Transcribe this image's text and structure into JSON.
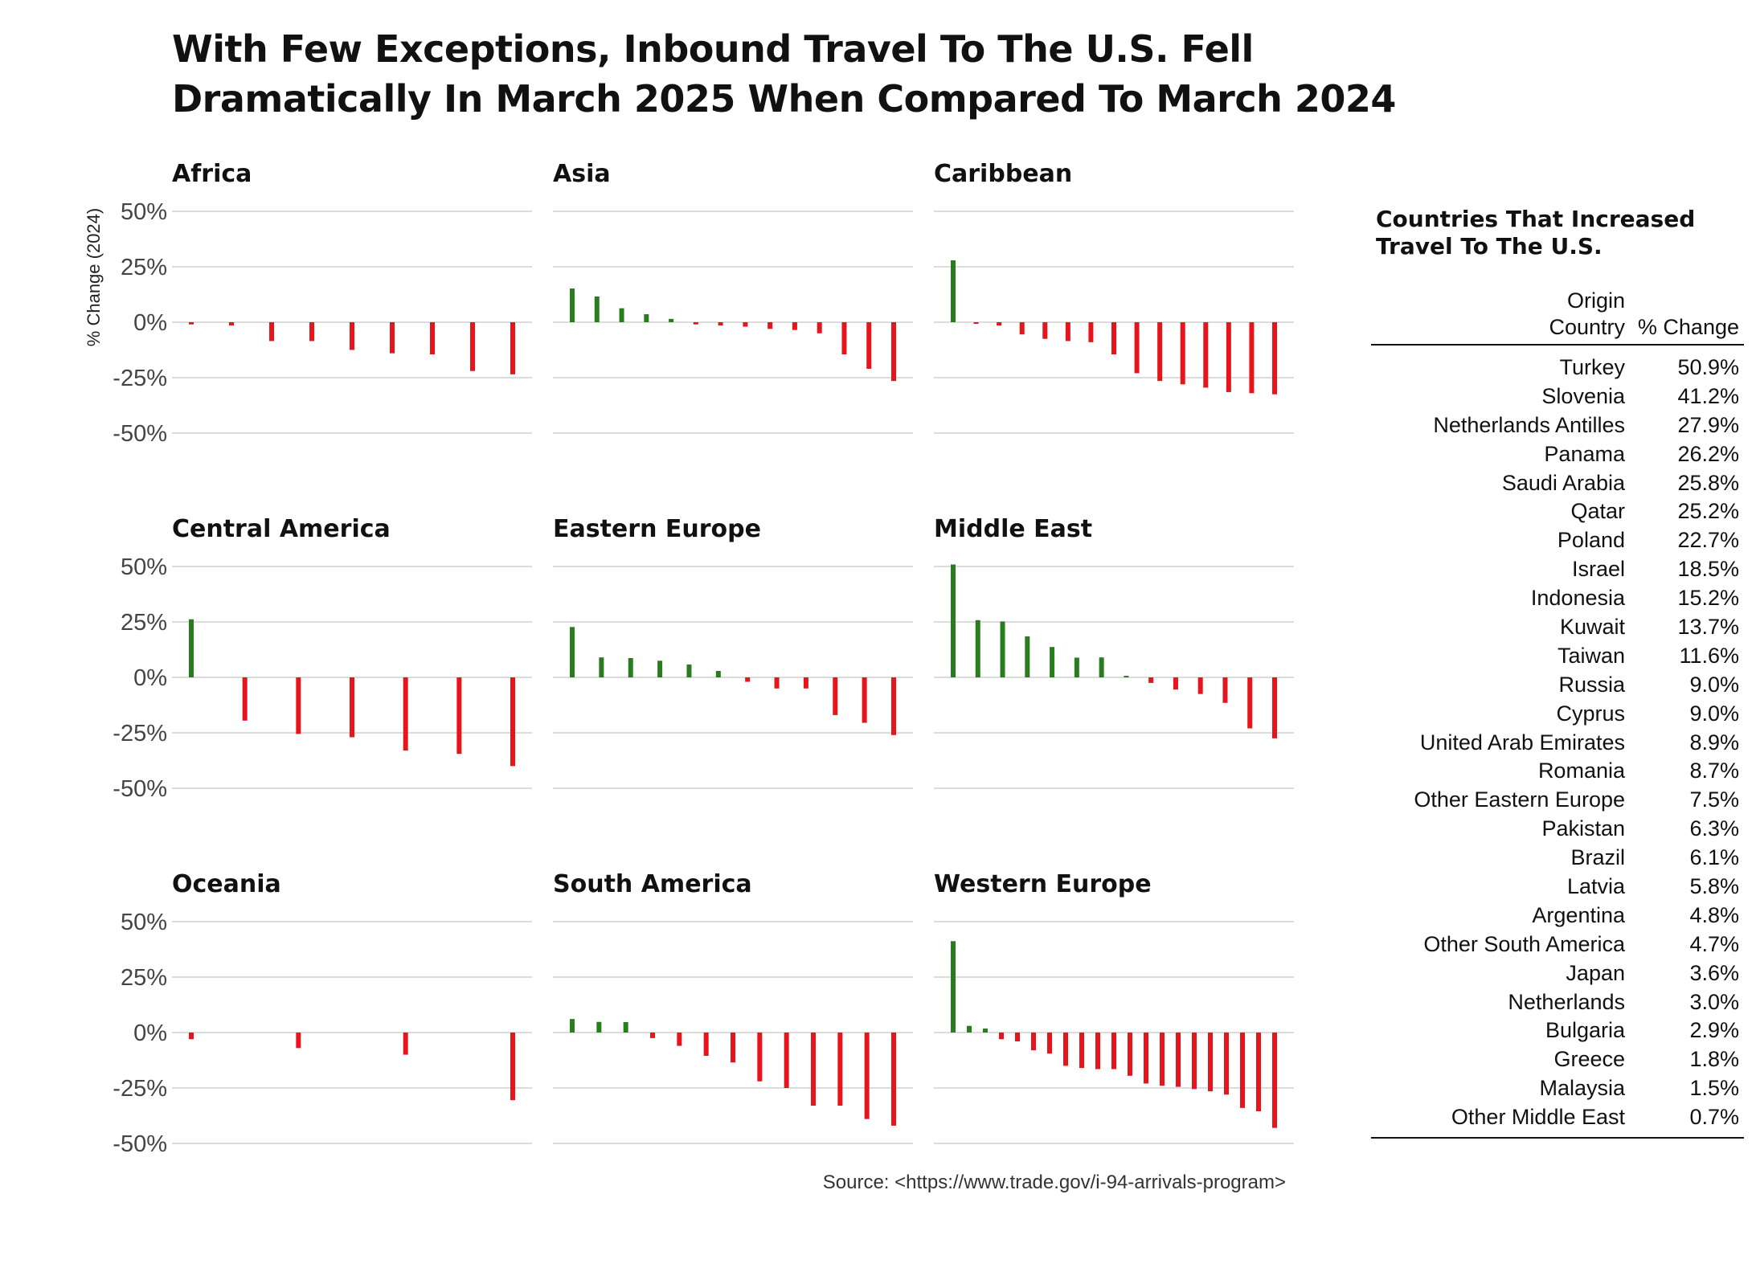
{
  "title_lines": [
    "With Few Exceptions, Inbound Travel To The U.S. Fell",
    "Dramatically In March 2025 When Compared To March 2024"
  ],
  "source": "Source: <https://www.trade.gov/i-94-arrivals-program>",
  "colors": {
    "increase": "#2a7d1f",
    "decrease": "#e8141c",
    "grid": "#d0d0d0",
    "text": "#111111"
  },
  "chart_data": {
    "type": "bar",
    "ylabel": "% Change (2024)",
    "ylim": [
      -50,
      50
    ],
    "y_ticks": [
      50,
      25,
      0,
      -25,
      -50
    ],
    "y_tick_labels": [
      "50%",
      "25%",
      "0%",
      "-25%",
      "-50%"
    ],
    "grid": true,
    "panels": [
      {
        "name": "Africa",
        "values": [
          -1.0,
          -1.5,
          -8.5,
          -8.5,
          -12.5,
          -14.0,
          -14.5,
          -22.0,
          -23.5
        ]
      },
      {
        "name": "Asia",
        "values": [
          15.2,
          11.6,
          6.3,
          3.6,
          1.5,
          -1.0,
          -1.5,
          -2.0,
          -3.0,
          -3.5,
          -5.0,
          -14.5,
          -21.0,
          -26.5
        ]
      },
      {
        "name": "Caribbean",
        "values": [
          27.9,
          -0.5,
          -1.5,
          -5.5,
          -7.5,
          -8.5,
          -9.0,
          -14.5,
          -23.0,
          -26.5,
          -28.0,
          -29.5,
          -31.5,
          -32.0,
          -32.5
        ]
      },
      {
        "name": "Central America",
        "values": [
          26.2,
          -19.5,
          -25.5,
          -27.0,
          -33.0,
          -34.5,
          -40.0
        ]
      },
      {
        "name": "Eastern Europe",
        "values": [
          22.7,
          9.0,
          8.7,
          7.5,
          5.8,
          2.9,
          -2.0,
          -5.0,
          -5.0,
          -17.0,
          -20.5,
          -26.0
        ]
      },
      {
        "name": "Middle East",
        "values": [
          50.9,
          25.8,
          25.2,
          18.5,
          13.7,
          8.9,
          9.0,
          0.7,
          -2.5,
          -5.5,
          -7.5,
          -11.5,
          -23.0,
          -27.5
        ]
      },
      {
        "name": "Oceania",
        "values": [
          -3.0,
          -7.0,
          -10.0,
          -30.5
        ]
      },
      {
        "name": "South America",
        "values": [
          6.1,
          4.8,
          4.7,
          -2.5,
          -6.0,
          -10.5,
          -13.5,
          -22.0,
          -25.0,
          -33.0,
          -33.0,
          -39.0,
          -42.0
        ]
      },
      {
        "name": "Western Europe",
        "values": [
          41.2,
          3.0,
          1.8,
          -3.0,
          -4.0,
          -8.0,
          -9.5,
          -15.0,
          -16.0,
          -16.5,
          -16.5,
          -19.5,
          -23.0,
          -24.0,
          -24.5,
          -25.5,
          -26.5,
          -28.0,
          -34.0,
          -35.5,
          -43.0
        ]
      }
    ]
  },
  "table": {
    "title_lines": [
      "Countries That Increased",
      "Travel To The U.S."
    ],
    "header": {
      "country": [
        "Origin",
        "Country"
      ],
      "change": "% Change"
    },
    "rows": [
      {
        "country": "Turkey",
        "change": "50.9%"
      },
      {
        "country": "Slovenia",
        "change": "41.2%"
      },
      {
        "country": "Netherlands Antilles",
        "change": "27.9%"
      },
      {
        "country": "Panama",
        "change": "26.2%"
      },
      {
        "country": "Saudi Arabia",
        "change": "25.8%"
      },
      {
        "country": "Qatar",
        "change": "25.2%"
      },
      {
        "country": "Poland",
        "change": "22.7%"
      },
      {
        "country": "Israel",
        "change": "18.5%"
      },
      {
        "country": "Indonesia",
        "change": "15.2%"
      },
      {
        "country": "Kuwait",
        "change": "13.7%"
      },
      {
        "country": "Taiwan",
        "change": "11.6%"
      },
      {
        "country": "Russia",
        "change": "9.0%"
      },
      {
        "country": "Cyprus",
        "change": "9.0%"
      },
      {
        "country": "United Arab Emirates",
        "change": "8.9%"
      },
      {
        "country": "Romania",
        "change": "8.7%"
      },
      {
        "country": "Other Eastern Europe",
        "change": "7.5%"
      },
      {
        "country": "Pakistan",
        "change": "6.3%"
      },
      {
        "country": "Brazil",
        "change": "6.1%"
      },
      {
        "country": "Latvia",
        "change": "5.8%"
      },
      {
        "country": "Argentina",
        "change": "4.8%"
      },
      {
        "country": "Other South America",
        "change": "4.7%"
      },
      {
        "country": "Japan",
        "change": "3.6%"
      },
      {
        "country": "Netherlands",
        "change": "3.0%"
      },
      {
        "country": "Bulgaria",
        "change": "2.9%"
      },
      {
        "country": "Greece",
        "change": "1.8%"
      },
      {
        "country": "Malaysia",
        "change": "1.5%"
      },
      {
        "country": "Other Middle East",
        "change": "0.7%"
      }
    ]
  }
}
